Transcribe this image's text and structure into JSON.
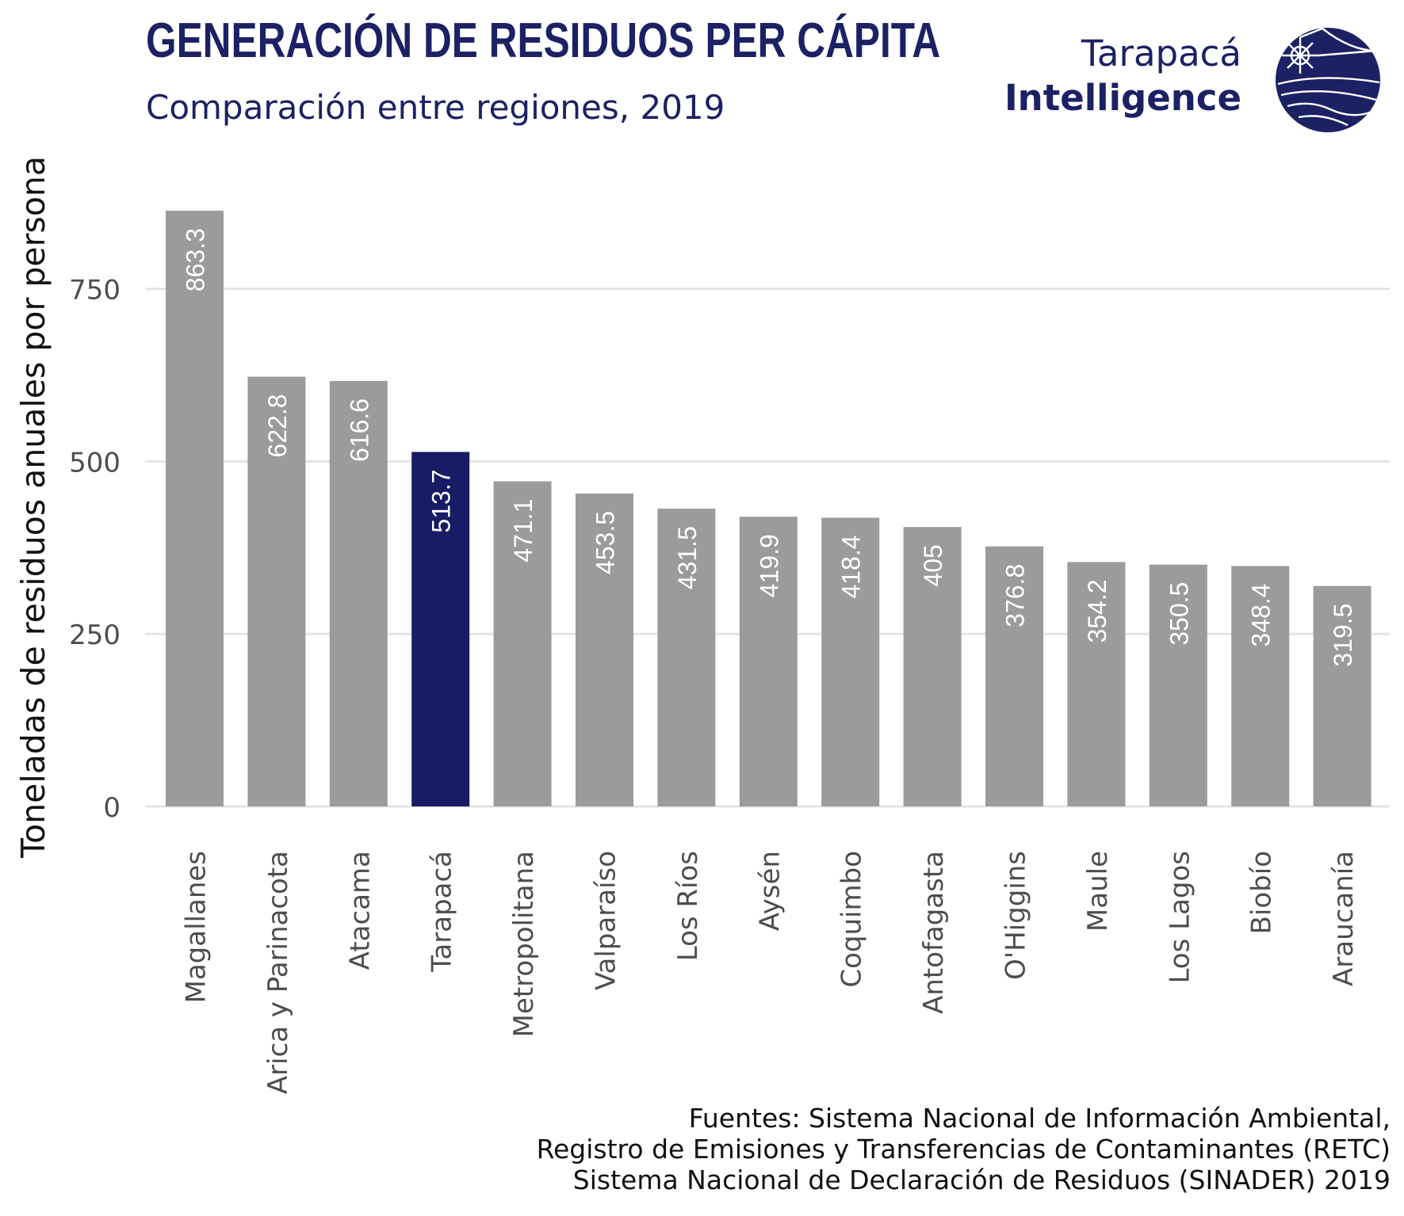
{
  "header": {
    "title": "GENERACIÓN DE RESIDUOS PER CÁPITA",
    "subtitle": "Comparación entre regiones, 2019"
  },
  "brand": {
    "line1": "Tarapacá",
    "line2": "Intelligence",
    "logo_icon": "globe-sun-logo-icon",
    "color": "#1b2163"
  },
  "source": {
    "lines": [
      "Fuentes: Sistema Nacional de Información Ambiental,",
      "Registro de Emisiones y Transferencias de Contaminantes (RETC)",
      "Sistema Nacional de Declaración de Residuos (SINADER) 2019"
    ]
  },
  "chart_data": {
    "type": "bar",
    "title": "GENERACIÓN DE RESIDUOS PER CÁPITA",
    "subtitle": "Comparación entre regiones, 2019",
    "xlabel": "",
    "ylabel": "Toneladas de residuos anuales por persona",
    "categories": [
      "Magallanes",
      "Arica y Parinacota",
      "Atacama",
      "Tarapacá",
      "Metropolitana",
      "Valparaíso",
      "Los Ríos",
      "Aysén",
      "Coquimbo",
      "Antofagasta",
      "O'Higgins",
      "Maule",
      "Los Lagos",
      "Biobío",
      "Araucanía"
    ],
    "values": [
      863.3,
      622.8,
      616.6,
      513.7,
      471.1,
      453.5,
      431.5,
      419.9,
      418.4,
      405,
      376.8,
      354.2,
      350.5,
      348.4,
      319.5
    ],
    "value_labels": [
      "863.3",
      "622.8",
      "616.6",
      "513.7",
      "471.1",
      "453.5",
      "431.5",
      "419.9",
      "418.4",
      "405",
      "376.8",
      "354.2",
      "350.5",
      "348.4",
      "319.5"
    ],
    "yticks": [
      0,
      250,
      500,
      750
    ],
    "ytick_labels": [
      "0",
      "250",
      "500",
      "750"
    ],
    "ylim": [
      0,
      863.3
    ],
    "grid": "horizontal",
    "legend": "none",
    "highlight_category": "Tarapacá",
    "colors": {
      "bar": "#9b9b9b",
      "highlight": "#171c64",
      "grid": "#e5e5e5",
      "value_label": "#ffffff",
      "tick_label": "#4d4d4d"
    }
  }
}
